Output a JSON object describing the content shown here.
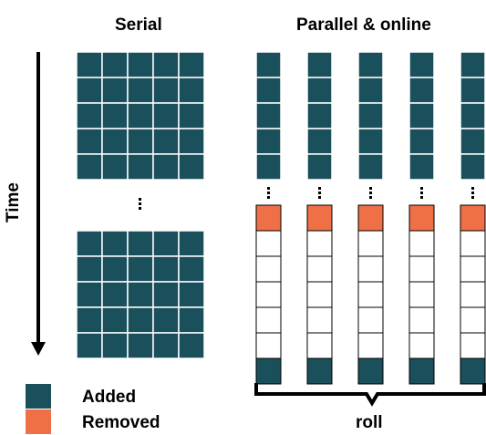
{
  "titles": {
    "serial": "Serial",
    "parallel": "Parallel & online"
  },
  "axis": {
    "time_label": "Time"
  },
  "legend": {
    "added_label": "Added",
    "removed_label": "Removed"
  },
  "roll_label": "roll",
  "colors": {
    "added": "#1a4f5c",
    "removed": "#ef6f47",
    "empty": "#ffffff",
    "grid_line": "#ffffff",
    "outline": "#000000"
  },
  "serial": {
    "columns": 5,
    "rows": 5,
    "blocks": 2
  },
  "parallel": {
    "columns": 5,
    "top_added_cells": 5,
    "removed_cells": 1,
    "empty_cells": 5,
    "bottom_added_cells": 1
  }
}
